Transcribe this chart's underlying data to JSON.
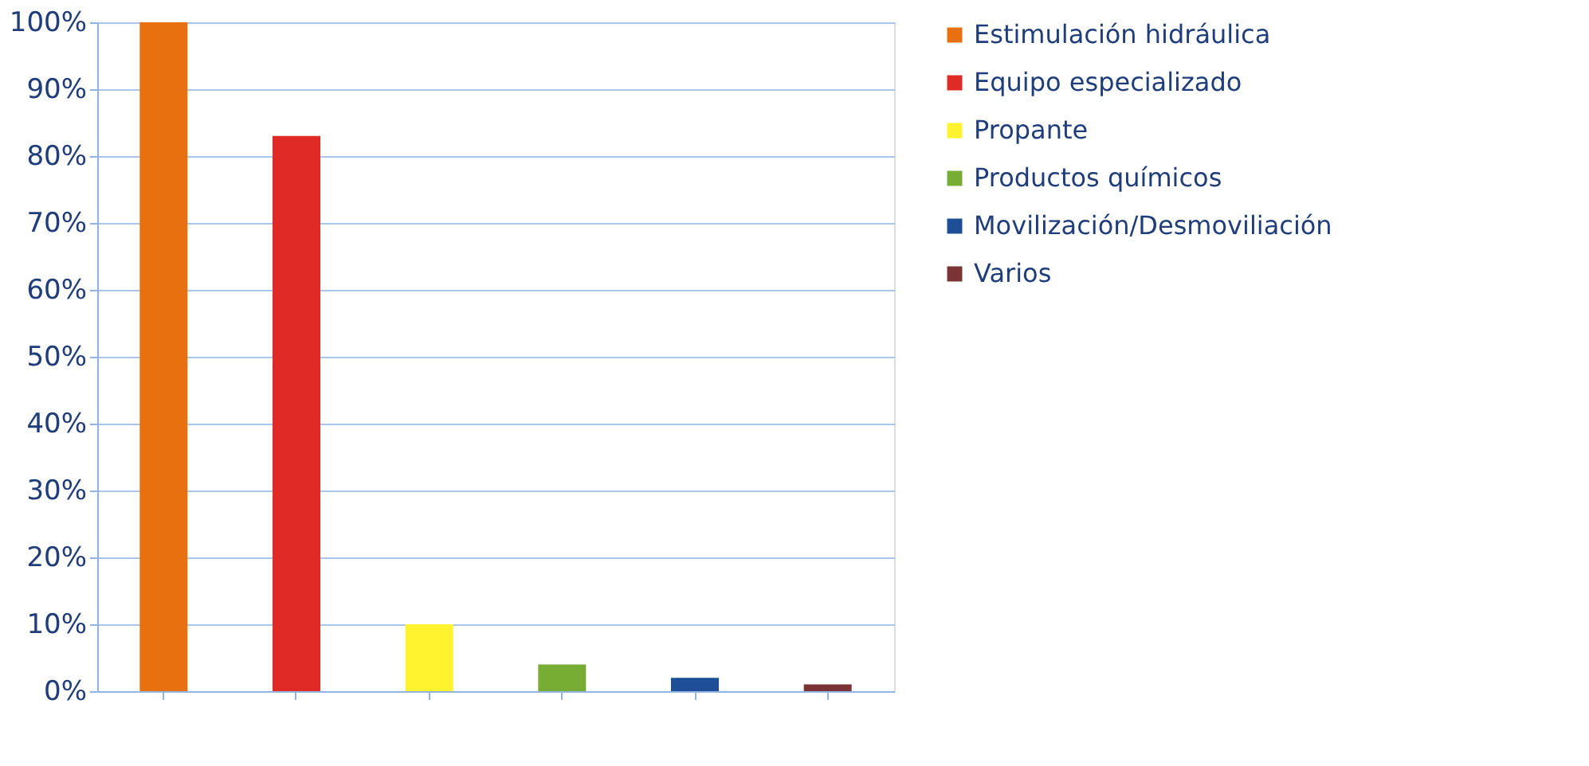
{
  "chart_data": {
    "type": "bar",
    "stacked": true,
    "categories": [
      null,
      null,
      null,
      null,
      null,
      null
    ],
    "series": [
      {
        "name": "Estimulación hidráulica",
        "color": "#e8700e",
        "values": [
          100,
          null,
          null,
          null,
          null,
          null
        ]
      },
      {
        "name": "Equipo especializado",
        "color": "#e02a26",
        "values": [
          null,
          83,
          null,
          null,
          null,
          null
        ]
      },
      {
        "name": "Propante",
        "color": "#fff22e",
        "values": [
          null,
          null,
          10,
          null,
          null,
          null
        ]
      },
      {
        "name": "Productos químicos",
        "color": "#78ad34",
        "values": [
          null,
          null,
          null,
          4,
          null,
          null
        ]
      },
      {
        "name": "Movilización/Desmoviliación",
        "color": "#1e4f96",
        "values": [
          null,
          null,
          null,
          null,
          2,
          null
        ]
      },
      {
        "name": "Varios",
        "color": "#7a3436",
        "values": [
          null,
          null,
          null,
          null,
          null,
          1
        ]
      }
    ],
    "ylim": [
      0,
      100
    ],
    "yticks": [
      {
        "value": 0,
        "label": "0%"
      },
      {
        "value": 10,
        "label": "10%"
      },
      {
        "value": 20,
        "label": "20%"
      },
      {
        "value": 30,
        "label": "30%"
      },
      {
        "value": 40,
        "label": "40%"
      },
      {
        "value": 50,
        "label": "50%"
      },
      {
        "value": 60,
        "label": "60%"
      },
      {
        "value": 70,
        "label": "70%"
      },
      {
        "value": 80,
        "label": "80%"
      },
      {
        "value": 90,
        "label": "90%"
      },
      {
        "value": 100,
        "label": "100%"
      }
    ],
    "grid": "y",
    "legend": "right",
    "tick_labels": "y"
  }
}
